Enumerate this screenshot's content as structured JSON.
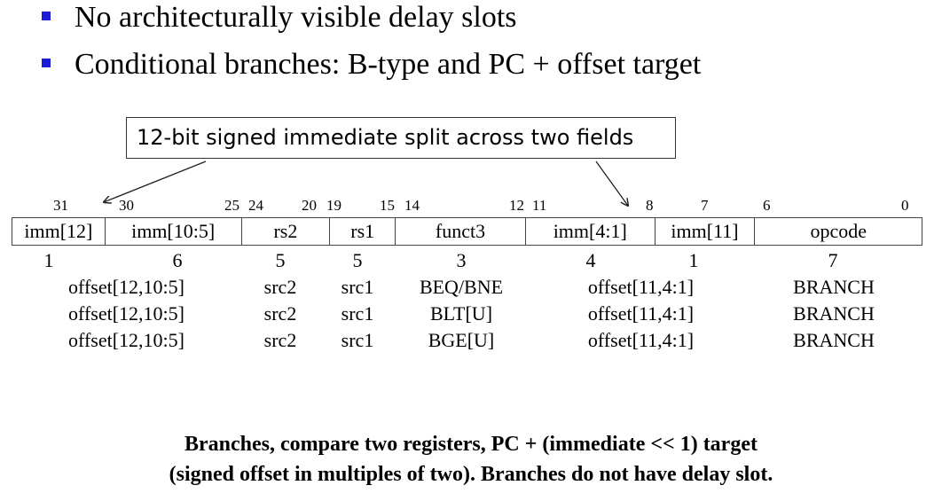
{
  "bullets": [
    "No architecturally visible delay slots",
    "Conditional branches: B-type and PC + offset target"
  ],
  "callout": "12-bit signed immediate split across two fields",
  "bit_positions": [
    "31",
    "30",
    "25",
    "24",
    "20",
    "19",
    "15",
    "14",
    "12",
    "11",
    "8",
    "7",
    "6",
    "0"
  ],
  "fields": [
    {
      "name": "imm[12]",
      "width": "1"
    },
    {
      "name": "imm[10:5]",
      "width": "6"
    },
    {
      "name": "rs2",
      "width": "5"
    },
    {
      "name": "rs1",
      "width": "5"
    },
    {
      "name": "funct3",
      "width": "3"
    },
    {
      "name": "imm[4:1]",
      "width": "4"
    },
    {
      "name": "imm[11]",
      "width": "1"
    },
    {
      "name": "opcode",
      "width": "7"
    }
  ],
  "rows": [
    {
      "imm_hi": "offset[12,10:5]",
      "rs2": "src2",
      "rs1": "src1",
      "funct3": "BEQ/BNE",
      "imm_lo": "offset[11,4:1]",
      "opcode": "BRANCH"
    },
    {
      "imm_hi": "offset[12,10:5]",
      "rs2": "src2",
      "rs1": "src1",
      "funct3": "BLT[U]",
      "imm_lo": "offset[11,4:1]",
      "opcode": "BRANCH"
    },
    {
      "imm_hi": "offset[12,10:5]",
      "rs2": "src2",
      "rs1": "src1",
      "funct3": "BGE[U]",
      "imm_lo": "offset[11,4:1]",
      "opcode": "BRANCH"
    }
  ],
  "caption": [
    "Branches, compare two registers, PC + (immediate << 1) target",
    "(signed offset in multiples of two). Branches do not have delay slot."
  ],
  "colors": {
    "bullet": "#1c1cd6",
    "text": "#000000",
    "border": "#444444"
  }
}
